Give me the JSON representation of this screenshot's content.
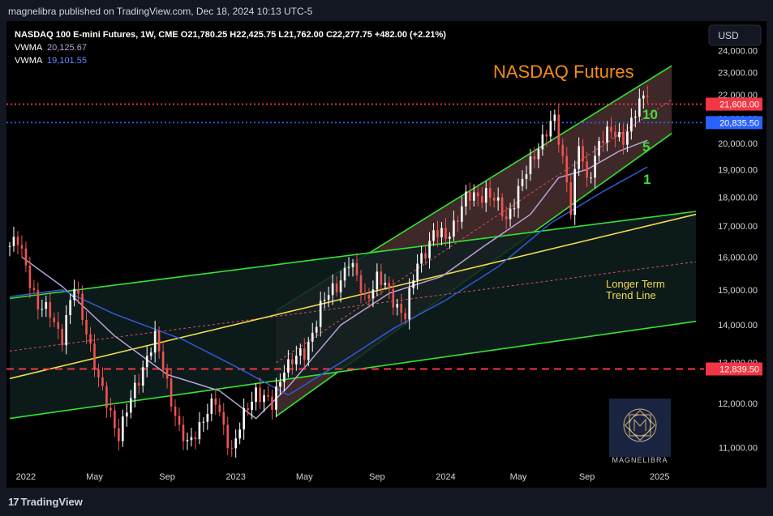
{
  "header": {
    "published_text": "magnelibra published on TradingView.com, Dec 18, 2024 10:13 UTC-5"
  },
  "footer": {
    "brand": "TradingView"
  },
  "legend": {
    "symbol_line": "NASDAQ 100 E-mini Futures, 1W, CME  O21,780.25  H22,425.75  L21,762.00  C22,277.75  +482.00 (+2.21%)",
    "vwma_label": "VWMA",
    "vwma_value": "20,125.67",
    "vwma_color": "#b8a3d6",
    "vwma2_label": "VWMA",
    "vwma2_value": "19,101.55",
    "vwma2_color": "#2f5bd6"
  },
  "currency_button": "USD",
  "annotations": {
    "title": "NASDAQ Futures",
    "label_10": "10",
    "label_5": "5",
    "label_1": "1",
    "trend_line_1": "Longer Term",
    "trend_line_2": "Trend Line"
  },
  "watermark": {
    "text": "MAGNELIBRA"
  },
  "chart_data": {
    "type": "candlestick",
    "symbol": "NASDAQ 100 E-mini Futures",
    "interval": "1W",
    "exchange": "CME",
    "currency": "USD",
    "y_scale": "log",
    "ylim": [
      10700,
      24800
    ],
    "y_ticks": [
      11000,
      12000,
      13000,
      14000,
      15000,
      16000,
      17000,
      18000,
      19000,
      20000,
      21000,
      22000,
      23000,
      24000
    ],
    "y_tick_labels": [
      "11,000.00",
      "12,000.00",
      "13,000.00",
      "14,000.00",
      "15,000.00",
      "16,000.00",
      "17,000.00",
      "18,000.00",
      "19,000.00",
      "20,000.00",
      "21,000.00",
      "22,000.00",
      "23,000.00",
      "24,000.00"
    ],
    "x_ticks": [
      {
        "label": "2022",
        "date": "2022-01-03"
      },
      {
        "label": "May",
        "date": "2022-05-02"
      },
      {
        "label": "Sep",
        "date": "2022-09-05"
      },
      {
        "label": "2023",
        "date": "2023-01-02"
      },
      {
        "label": "May",
        "date": "2023-05-01"
      },
      {
        "label": "Sep",
        "date": "2023-09-04"
      },
      {
        "label": "2024",
        "date": "2024-01-01"
      },
      {
        "label": "May",
        "date": "2024-05-06"
      },
      {
        "label": "Sep",
        "date": "2024-09-02"
      },
      {
        "label": "2025",
        "date": "2025-01-06"
      }
    ],
    "x_range": [
      "2021-12-06",
      "2025-03-10"
    ],
    "last_bar": {
      "open": 21780.25,
      "high": 22425.75,
      "low": 21762.0,
      "close": 22277.75,
      "change": 482.0,
      "change_pct": 2.21
    },
    "price_path": [
      {
        "date": "2021-12-06",
        "close": 16350
      },
      {
        "date": "2021-12-20",
        "close": 16450
      },
      {
        "date": "2022-01-03",
        "close": 15750
      },
      {
        "date": "2022-01-24",
        "close": 14500
      },
      {
        "date": "2022-02-14",
        "close": 14300
      },
      {
        "date": "2022-03-07",
        "close": 13700
      },
      {
        "date": "2022-03-28",
        "close": 15050
      },
      {
        "date": "2022-04-18",
        "close": 13900
      },
      {
        "date": "2022-05-09",
        "close": 12500
      },
      {
        "date": "2022-05-23",
        "close": 12000
      },
      {
        "date": "2022-06-13",
        "close": 11300
      },
      {
        "date": "2022-07-04",
        "close": 12050
      },
      {
        "date": "2022-08-01",
        "close": 13200
      },
      {
        "date": "2022-08-15",
        "close": 13600
      },
      {
        "date": "2022-09-05",
        "close": 12500
      },
      {
        "date": "2022-09-26",
        "close": 11400
      },
      {
        "date": "2022-10-10",
        "close": 11000
      },
      {
        "date": "2022-11-07",
        "close": 11700
      },
      {
        "date": "2022-11-28",
        "close": 12000
      },
      {
        "date": "2022-12-26",
        "close": 10950
      },
      {
        "date": "2023-01-23",
        "close": 11900
      },
      {
        "date": "2023-02-06",
        "close": 12350
      },
      {
        "date": "2023-03-06",
        "close": 11900
      },
      {
        "date": "2023-03-27",
        "close": 12950
      },
      {
        "date": "2023-05-01",
        "close": 13200
      },
      {
        "date": "2023-05-29",
        "close": 14500
      },
      {
        "date": "2023-06-26",
        "close": 15150
      },
      {
        "date": "2023-07-17",
        "close": 15850
      },
      {
        "date": "2023-08-14",
        "close": 14750
      },
      {
        "date": "2023-09-04",
        "close": 15350
      },
      {
        "date": "2023-09-25",
        "close": 14900
      },
      {
        "date": "2023-10-23",
        "close": 14250
      },
      {
        "date": "2023-11-13",
        "close": 15800
      },
      {
        "date": "2023-12-11",
        "close": 16750
      },
      {
        "date": "2024-01-01",
        "close": 16600
      },
      {
        "date": "2024-02-05",
        "close": 17900
      },
      {
        "date": "2024-03-11",
        "close": 18200
      },
      {
        "date": "2024-04-15",
        "close": 17300
      },
      {
        "date": "2024-05-13",
        "close": 18500
      },
      {
        "date": "2024-06-10",
        "close": 20000
      },
      {
        "date": "2024-07-08",
        "close": 20900
      },
      {
        "date": "2024-07-29",
        "close": 18700
      },
      {
        "date": "2024-08-05",
        "close": 17600
      },
      {
        "date": "2024-08-19",
        "close": 19900
      },
      {
        "date": "2024-09-02",
        "close": 18500
      },
      {
        "date": "2024-09-23",
        "close": 20100
      },
      {
        "date": "2024-10-14",
        "close": 20400
      },
      {
        "date": "2024-11-04",
        "close": 20300
      },
      {
        "date": "2024-11-18",
        "close": 20800
      },
      {
        "date": "2024-12-02",
        "close": 21550
      },
      {
        "date": "2024-12-16",
        "close": 22277.75
      }
    ],
    "price_lines": [
      {
        "value": 21608.0,
        "label": "21,608.00",
        "color": "#f23645",
        "style": "dotted"
      },
      {
        "value": 20835.5,
        "label": "20,835.50",
        "color": "#2962ff",
        "style": "dotted"
      },
      {
        "value": 12839.5,
        "label": "12,839.50",
        "color": "#f23645",
        "style": "dashed"
      }
    ],
    "channels": [
      {
        "name": "",
        "color": "#33e533",
        "fill": "#4a2f2f",
        "upper": [
          {
            "date": "2023-03-13",
            "value": 14400
          },
          {
            "date": "2025-01-27",
            "value": 23300
          }
        ],
        "lower": [
          {
            "date": "2023-03-13",
            "value": 11700
          },
          {
            "date": "2025-01-27",
            "value": 20400
          }
        ]
      },
      {
        "name": "",
        "color": "#33e533",
        "fill": "#0f1f1e",
        "upper": [
          {
            "date": "2021-12-06",
            "value": 14750
          },
          {
            "date": "2025-03-10",
            "value": 17500
          }
        ],
        "lower": [
          {
            "date": "2021-12-06",
            "value": 11650
          },
          {
            "date": "2025-03-10",
            "value": 14100
          }
        ]
      }
    ],
    "trend_line": {
      "color": "#f0dc4e",
      "from": {
        "date": "2021-12-06",
        "value": 12600
      },
      "to": {
        "date": "2025-03-10",
        "value": 17400
      }
    },
    "vwma_series": [
      {
        "name": "VWMA",
        "color": "#b8a3d6",
        "points": [
          {
            "date": "2021-12-27",
            "value": 16000
          },
          {
            "date": "2022-03-07",
            "value": 15100
          },
          {
            "date": "2022-06-06",
            "value": 13700
          },
          {
            "date": "2022-09-05",
            "value": 12700
          },
          {
            "date": "2022-12-05",
            "value": 12300
          },
          {
            "date": "2023-02-06",
            "value": 11650
          },
          {
            "date": "2023-04-03",
            "value": 12400
          },
          {
            "date": "2023-07-03",
            "value": 14000
          },
          {
            "date": "2023-09-25",
            "value": 14900
          },
          {
            "date": "2023-12-25",
            "value": 15400
          },
          {
            "date": "2024-03-04",
            "value": 16300
          },
          {
            "date": "2024-05-27",
            "value": 17400
          },
          {
            "date": "2024-07-15",
            "value": 18700
          },
          {
            "date": "2024-09-02",
            "value": 19000
          },
          {
            "date": "2024-10-28",
            "value": 19700
          },
          {
            "date": "2024-12-16",
            "value": 20125.67
          }
        ]
      },
      {
        "name": "VWMA",
        "color": "#2f5bd6",
        "points": [
          {
            "date": "2021-12-06",
            "value": 14800
          },
          {
            "date": "2022-03-07",
            "value": 15000
          },
          {
            "date": "2022-06-06",
            "value": 14300
          },
          {
            "date": "2022-10-03",
            "value": 13600
          },
          {
            "date": "2023-01-02",
            "value": 12900
          },
          {
            "date": "2023-04-03",
            "value": 12200
          },
          {
            "date": "2023-07-03",
            "value": 13000
          },
          {
            "date": "2023-10-02",
            "value": 13900
          },
          {
            "date": "2024-01-01",
            "value": 14700
          },
          {
            "date": "2024-04-01",
            "value": 15700
          },
          {
            "date": "2024-07-01",
            "value": 17100
          },
          {
            "date": "2024-09-30",
            "value": 18200
          },
          {
            "date": "2024-12-16",
            "value": 19101.55
          }
        ]
      }
    ],
    "dashed_midlines": [
      {
        "color": "#d95060",
        "from": {
          "date": "2021-12-06",
          "value": 13300
        },
        "to": {
          "date": "2025-03-10",
          "value": 15850
        }
      },
      {
        "color": "#d95060",
        "from": {
          "date": "2023-03-13",
          "value": 13000
        },
        "to": {
          "date": "2025-01-27",
          "value": 21800
        }
      }
    ]
  }
}
